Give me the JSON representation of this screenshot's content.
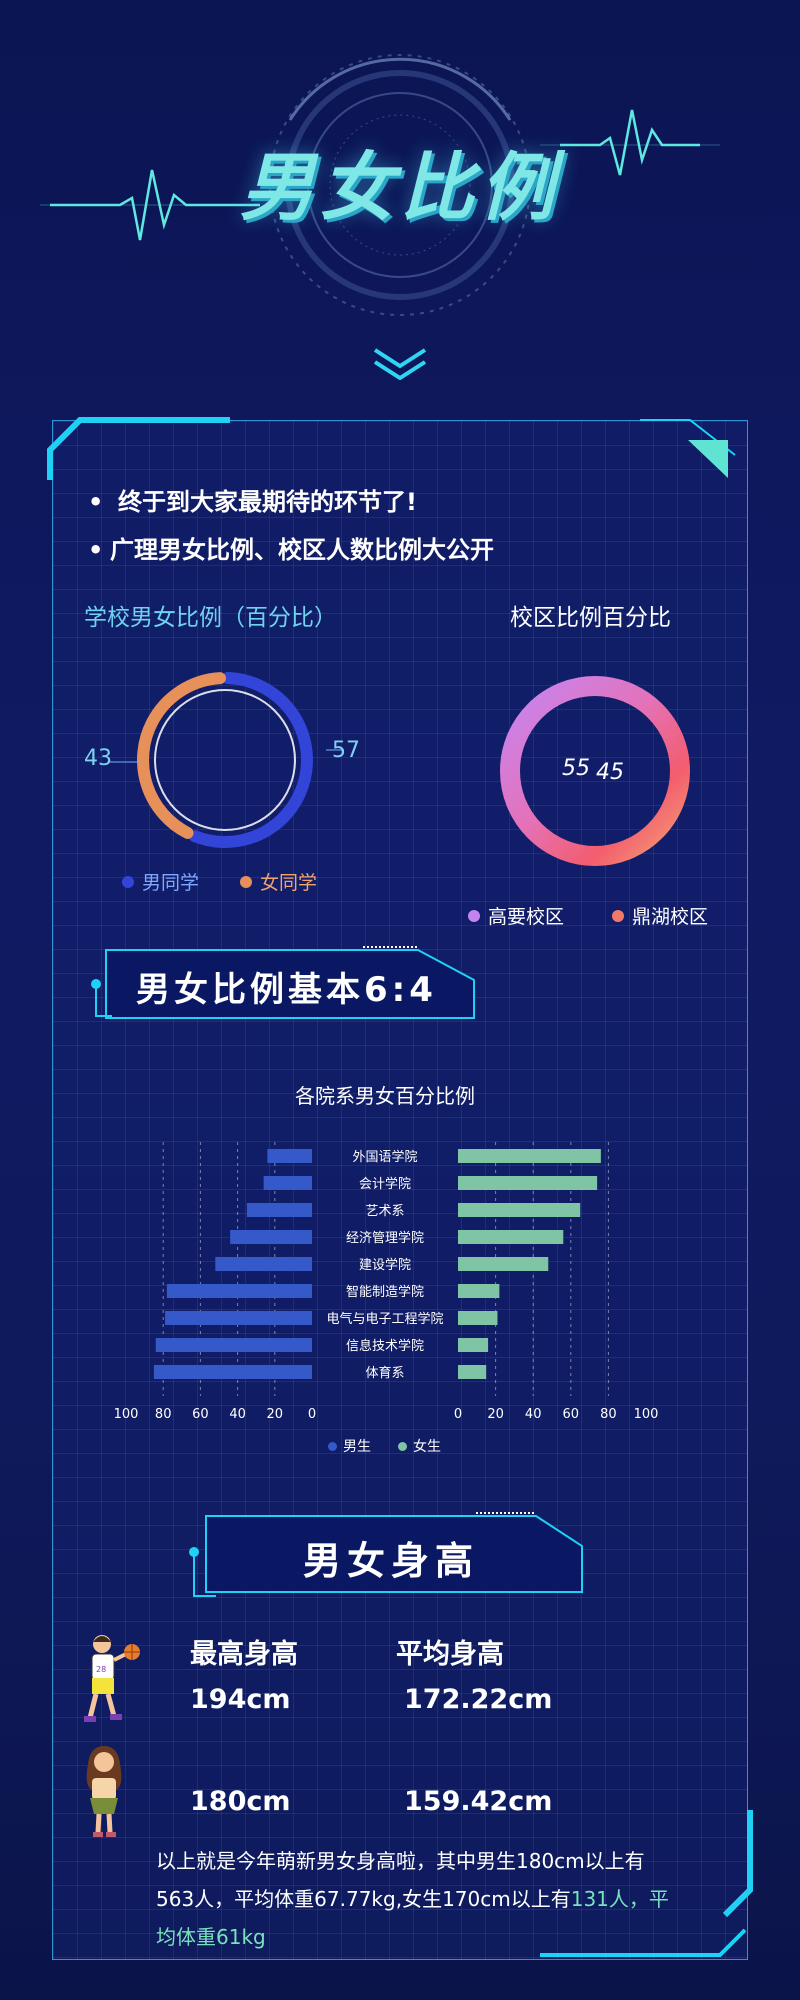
{
  "header": {
    "title": "男女比例"
  },
  "intro": {
    "bullet1": "终于到大家最期待的环节了!",
    "bullet2": "广理男女比例、校区人数比例大公开"
  },
  "colors": {
    "male": "#3345d8",
    "female": "#e8905a",
    "campus_a": "#c484f0",
    "campus_b": "#f4786a",
    "bar_male": "#3559c8",
    "bar_female": "#7fc4a4",
    "accent": "#1fd1f5"
  },
  "gender_chart": {
    "title": "学校男女比例（百分比）",
    "male_value": "57",
    "female_value": "43",
    "legend_male": "男同学",
    "legend_female": "女同学"
  },
  "campus_chart": {
    "title": "校区比例百分比",
    "value_a": "55",
    "value_b": "45",
    "legend_a": "高要校区",
    "legend_b": "鼎湖校区"
  },
  "ratio_banner": {
    "text": "男女比例基本6:4"
  },
  "chart_data": {
    "type": "bar",
    "title": "各院系男女百分比例",
    "categories": [
      "外国语学院",
      "会计学院",
      "艺术系",
      "经济管理学院",
      "建设学院",
      "智能制造学院",
      "电气与电子工程学院",
      "信息技术学院",
      "体育系"
    ],
    "series": [
      {
        "name": "男生",
        "values": [
          24,
          26,
          35,
          44,
          52,
          78,
          79,
          84,
          85
        ]
      },
      {
        "name": "女生",
        "values": [
          76,
          74,
          65,
          56,
          48,
          22,
          21,
          16,
          15
        ]
      }
    ],
    "axis_ticks_left": [
      "100",
      "80",
      "60",
      "40",
      "20",
      "0"
    ],
    "axis_ticks_right": [
      "0",
      "20",
      "40",
      "60",
      "80",
      "100"
    ],
    "xlim": [
      0,
      100
    ],
    "legend_placement": "bottom-center"
  },
  "height_section": {
    "banner": "男女身高",
    "col_max": "最高身高",
    "col_avg": "平均身高",
    "male_max": "194cm",
    "male_avg": "172.22cm",
    "female_max": "180cm",
    "female_avg": "159.42cm",
    "summary_main": "以上就是今年萌新男女身高啦，其中男生180cm以上有563人，平均体重67.77kg,女生170cm以上有",
    "summary_highlight": "131人，平均体重61kg"
  }
}
